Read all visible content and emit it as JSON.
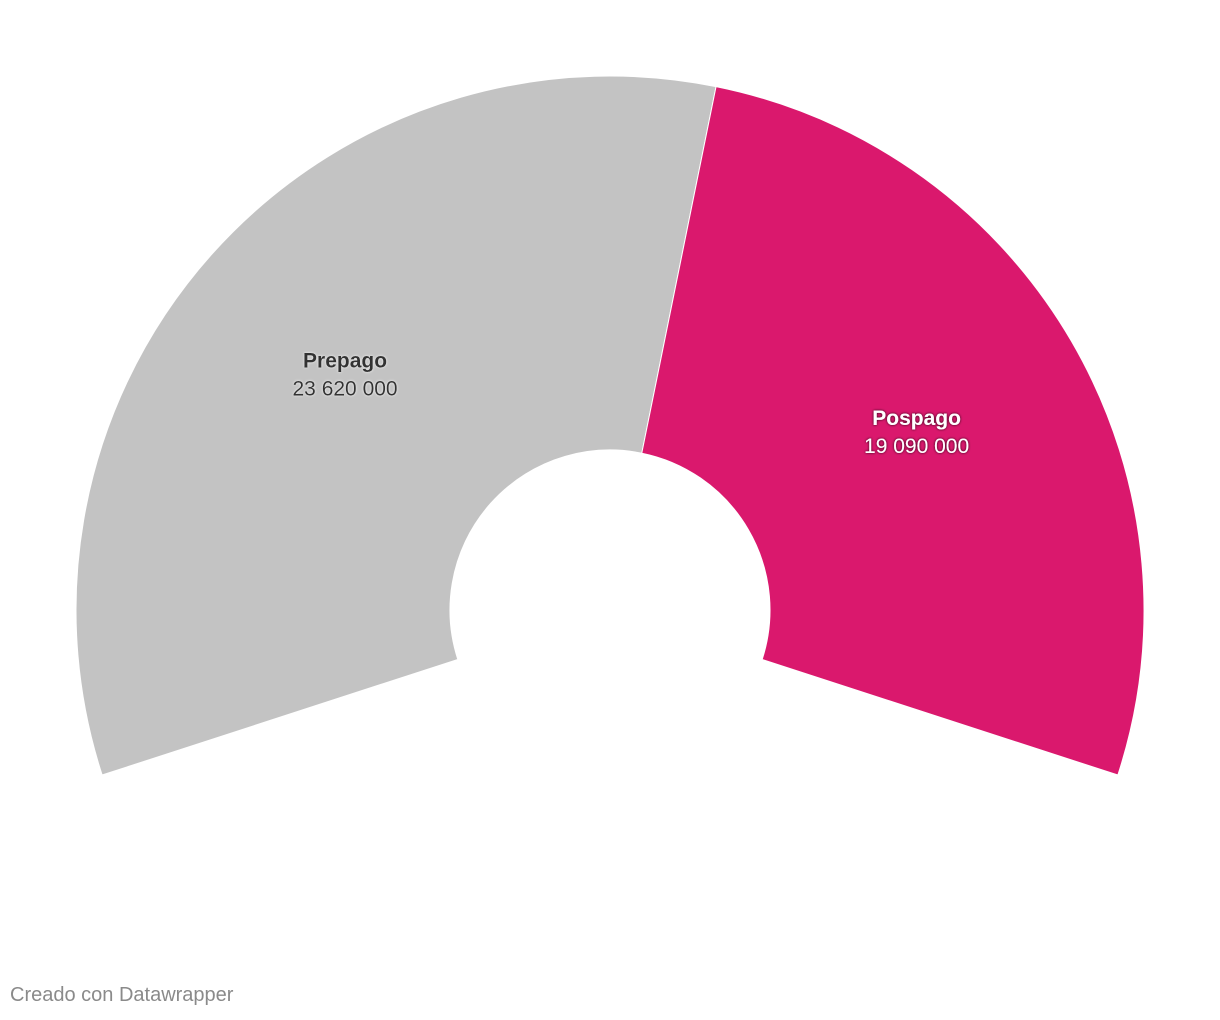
{
  "chart_data": {
    "type": "pie",
    "variant": "semi-donut",
    "title": "",
    "slices": [
      {
        "label": "Prepago",
        "value": 23620000,
        "value_label": "23 620 000",
        "color": "#c3c3c3",
        "text_color": "#333333"
      },
      {
        "label": "Pospago",
        "value": 19090000,
        "value_label": "19 090 000",
        "color": "#da186d",
        "text_color": "#ffffff"
      }
    ]
  },
  "footer": {
    "credit": "Creado con Datawrapper"
  }
}
